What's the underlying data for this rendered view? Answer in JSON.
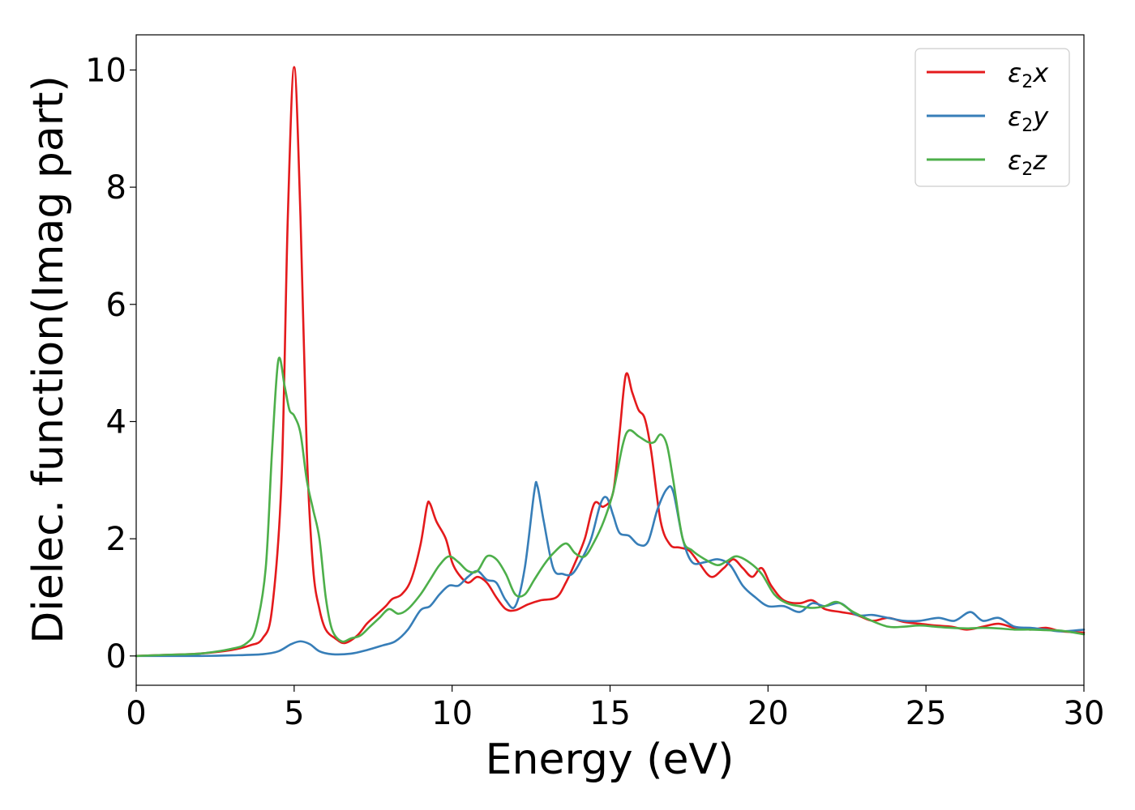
{
  "chart_data": {
    "type": "line",
    "title": "",
    "xlabel": "Energy (eV)",
    "ylabel": "Dielec. function(Imag part)",
    "xlim": [
      0,
      30
    ],
    "ylim": [
      -0.5,
      10.6
    ],
    "xticks": [
      0,
      5,
      10,
      15,
      20,
      25,
      30
    ],
    "yticks": [
      0,
      2,
      4,
      6,
      8,
      10
    ],
    "grid": false,
    "legend_position": "top-right",
    "series": [
      {
        "name": "ε2x",
        "color": "#e41a1c",
        "points": [
          [
            0,
            0
          ],
          [
            1,
            0.02
          ],
          [
            2,
            0.04
          ],
          [
            3,
            0.1
          ],
          [
            3.6,
            0.18
          ],
          [
            4.0,
            0.3
          ],
          [
            4.3,
            0.8
          ],
          [
            4.6,
            3.0
          ],
          [
            4.8,
            7.5
          ],
          [
            5.0,
            10.05
          ],
          [
            5.2,
            7.5
          ],
          [
            5.4,
            3.5
          ],
          [
            5.6,
            1.5
          ],
          [
            5.8,
            0.8
          ],
          [
            6.0,
            0.45
          ],
          [
            6.3,
            0.3
          ],
          [
            6.6,
            0.22
          ],
          [
            7.0,
            0.35
          ],
          [
            7.3,
            0.55
          ],
          [
            7.6,
            0.7
          ],
          [
            7.9,
            0.85
          ],
          [
            8.1,
            0.97
          ],
          [
            8.4,
            1.05
          ],
          [
            8.7,
            1.3
          ],
          [
            9.0,
            1.9
          ],
          [
            9.2,
            2.55
          ],
          [
            9.3,
            2.6
          ],
          [
            9.5,
            2.3
          ],
          [
            9.8,
            2.0
          ],
          [
            10.0,
            1.6
          ],
          [
            10.2,
            1.4
          ],
          [
            10.5,
            1.25
          ],
          [
            10.8,
            1.35
          ],
          [
            11.1,
            1.25
          ],
          [
            11.4,
            1.0
          ],
          [
            11.7,
            0.8
          ],
          [
            12.0,
            0.78
          ],
          [
            12.4,
            0.88
          ],
          [
            12.8,
            0.95
          ],
          [
            13.3,
            1.0
          ],
          [
            13.6,
            1.25
          ],
          [
            13.9,
            1.6
          ],
          [
            14.2,
            2.0
          ],
          [
            14.5,
            2.6
          ],
          [
            14.8,
            2.55
          ],
          [
            15.1,
            2.8
          ],
          [
            15.3,
            3.8
          ],
          [
            15.5,
            4.8
          ],
          [
            15.7,
            4.5
          ],
          [
            15.9,
            4.2
          ],
          [
            16.1,
            4.05
          ],
          [
            16.3,
            3.5
          ],
          [
            16.6,
            2.3
          ],
          [
            16.9,
            1.9
          ],
          [
            17.2,
            1.85
          ],
          [
            17.5,
            1.8
          ],
          [
            17.8,
            1.6
          ],
          [
            18.2,
            1.35
          ],
          [
            18.6,
            1.5
          ],
          [
            18.9,
            1.65
          ],
          [
            19.2,
            1.5
          ],
          [
            19.5,
            1.35
          ],
          [
            19.8,
            1.5
          ],
          [
            20.1,
            1.2
          ],
          [
            20.5,
            0.95
          ],
          [
            21.0,
            0.9
          ],
          [
            21.4,
            0.95
          ],
          [
            21.8,
            0.8
          ],
          [
            22.3,
            0.75
          ],
          [
            22.8,
            0.7
          ],
          [
            23.3,
            0.6
          ],
          [
            23.8,
            0.65
          ],
          [
            24.3,
            0.58
          ],
          [
            24.8,
            0.55
          ],
          [
            25.3,
            0.52
          ],
          [
            25.8,
            0.5
          ],
          [
            26.3,
            0.45
          ],
          [
            26.8,
            0.5
          ],
          [
            27.3,
            0.55
          ],
          [
            27.8,
            0.48
          ],
          [
            28.3,
            0.45
          ],
          [
            28.8,
            0.48
          ],
          [
            29.3,
            0.42
          ],
          [
            30,
            0.4
          ]
        ]
      },
      {
        "name": "ε2y",
        "color": "#377eb8",
        "points": [
          [
            0,
            0
          ],
          [
            2,
            0
          ],
          [
            3,
            0.01
          ],
          [
            4,
            0.03
          ],
          [
            4.5,
            0.08
          ],
          [
            4.9,
            0.2
          ],
          [
            5.2,
            0.25
          ],
          [
            5.5,
            0.2
          ],
          [
            5.8,
            0.08
          ],
          [
            6.2,
            0.03
          ],
          [
            6.8,
            0.04
          ],
          [
            7.3,
            0.1
          ],
          [
            7.8,
            0.18
          ],
          [
            8.2,
            0.25
          ],
          [
            8.6,
            0.45
          ],
          [
            9.0,
            0.78
          ],
          [
            9.3,
            0.85
          ],
          [
            9.6,
            1.05
          ],
          [
            9.9,
            1.2
          ],
          [
            10.2,
            1.2
          ],
          [
            10.5,
            1.35
          ],
          [
            10.8,
            1.45
          ],
          [
            11.1,
            1.3
          ],
          [
            11.4,
            1.25
          ],
          [
            11.7,
            0.95
          ],
          [
            12.0,
            0.85
          ],
          [
            12.3,
            1.5
          ],
          [
            12.6,
            2.8
          ],
          [
            12.7,
            2.9
          ],
          [
            12.9,
            2.3
          ],
          [
            13.2,
            1.5
          ],
          [
            13.5,
            1.4
          ],
          [
            13.8,
            1.4
          ],
          [
            14.1,
            1.65
          ],
          [
            14.4,
            2.0
          ],
          [
            14.7,
            2.6
          ],
          [
            14.9,
            2.7
          ],
          [
            15.1,
            2.4
          ],
          [
            15.3,
            2.1
          ],
          [
            15.6,
            2.05
          ],
          [
            15.9,
            1.9
          ],
          [
            16.2,
            1.95
          ],
          [
            16.5,
            2.5
          ],
          [
            16.8,
            2.85
          ],
          [
            17.0,
            2.8
          ],
          [
            17.3,
            2.0
          ],
          [
            17.6,
            1.6
          ],
          [
            18.0,
            1.6
          ],
          [
            18.4,
            1.65
          ],
          [
            18.8,
            1.55
          ],
          [
            19.2,
            1.2
          ],
          [
            19.6,
            1.0
          ],
          [
            20.0,
            0.85
          ],
          [
            20.5,
            0.85
          ],
          [
            21.0,
            0.75
          ],
          [
            21.4,
            0.9
          ],
          [
            21.8,
            0.85
          ],
          [
            22.3,
            0.9
          ],
          [
            22.8,
            0.7
          ],
          [
            23.3,
            0.7
          ],
          [
            23.8,
            0.65
          ],
          [
            24.3,
            0.6
          ],
          [
            24.8,
            0.6
          ],
          [
            25.4,
            0.65
          ],
          [
            25.9,
            0.6
          ],
          [
            26.4,
            0.75
          ],
          [
            26.8,
            0.6
          ],
          [
            27.3,
            0.65
          ],
          [
            27.8,
            0.5
          ],
          [
            28.3,
            0.48
          ],
          [
            28.8,
            0.45
          ],
          [
            29.3,
            0.42
          ],
          [
            30,
            0.45
          ]
        ]
      },
      {
        "name": "ε2z",
        "color": "#4daf4a",
        "points": [
          [
            0,
            0
          ],
          [
            1,
            0.02
          ],
          [
            2,
            0.04
          ],
          [
            3,
            0.12
          ],
          [
            3.5,
            0.22
          ],
          [
            3.8,
            0.5
          ],
          [
            4.1,
            1.5
          ],
          [
            4.3,
            3.5
          ],
          [
            4.5,
            5.05
          ],
          [
            4.7,
            4.6
          ],
          [
            4.85,
            4.2
          ],
          [
            5.0,
            4.1
          ],
          [
            5.2,
            3.8
          ],
          [
            5.4,
            3.0
          ],
          [
            5.6,
            2.5
          ],
          [
            5.8,
            2.0
          ],
          [
            6.0,
            1.0
          ],
          [
            6.2,
            0.45
          ],
          [
            6.5,
            0.25
          ],
          [
            6.8,
            0.3
          ],
          [
            7.1,
            0.35
          ],
          [
            7.4,
            0.5
          ],
          [
            7.7,
            0.65
          ],
          [
            8.0,
            0.8
          ],
          [
            8.3,
            0.72
          ],
          [
            8.6,
            0.8
          ],
          [
            9.0,
            1.05
          ],
          [
            9.3,
            1.3
          ],
          [
            9.6,
            1.55
          ],
          [
            9.9,
            1.7
          ],
          [
            10.2,
            1.6
          ],
          [
            10.5,
            1.45
          ],
          [
            10.8,
            1.45
          ],
          [
            11.1,
            1.7
          ],
          [
            11.4,
            1.65
          ],
          [
            11.7,
            1.4
          ],
          [
            12.0,
            1.05
          ],
          [
            12.3,
            1.05
          ],
          [
            12.6,
            1.3
          ],
          [
            12.9,
            1.55
          ],
          [
            13.2,
            1.75
          ],
          [
            13.6,
            1.92
          ],
          [
            13.9,
            1.75
          ],
          [
            14.2,
            1.7
          ],
          [
            14.5,
            1.95
          ],
          [
            14.8,
            2.3
          ],
          [
            15.1,
            2.8
          ],
          [
            15.4,
            3.6
          ],
          [
            15.6,
            3.85
          ],
          [
            15.9,
            3.75
          ],
          [
            16.2,
            3.65
          ],
          [
            16.4,
            3.65
          ],
          [
            16.6,
            3.78
          ],
          [
            16.8,
            3.6
          ],
          [
            17.0,
            3.0
          ],
          [
            17.3,
            2.0
          ],
          [
            17.6,
            1.8
          ],
          [
            18.0,
            1.65
          ],
          [
            18.4,
            1.55
          ],
          [
            18.7,
            1.62
          ],
          [
            19.0,
            1.7
          ],
          [
            19.4,
            1.6
          ],
          [
            19.8,
            1.4
          ],
          [
            20.2,
            1.05
          ],
          [
            20.6,
            0.9
          ],
          [
            21.0,
            0.85
          ],
          [
            21.4,
            0.82
          ],
          [
            21.8,
            0.85
          ],
          [
            22.2,
            0.92
          ],
          [
            22.7,
            0.75
          ],
          [
            23.2,
            0.62
          ],
          [
            23.8,
            0.5
          ],
          [
            24.3,
            0.5
          ],
          [
            24.8,
            0.52
          ],
          [
            25.3,
            0.5
          ],
          [
            25.8,
            0.48
          ],
          [
            26.3,
            0.47
          ],
          [
            26.8,
            0.48
          ],
          [
            27.3,
            0.47
          ],
          [
            27.8,
            0.45
          ],
          [
            28.3,
            0.45
          ],
          [
            28.8,
            0.44
          ],
          [
            29.3,
            0.43
          ],
          [
            30,
            0.37
          ]
        ]
      }
    ],
    "legend": [
      {
        "symbol": "ε",
        "sub": "2",
        "var": "x"
      },
      {
        "symbol": "ε",
        "sub": "2",
        "var": "y"
      },
      {
        "symbol": "ε",
        "sub": "2",
        "var": "z"
      }
    ]
  }
}
